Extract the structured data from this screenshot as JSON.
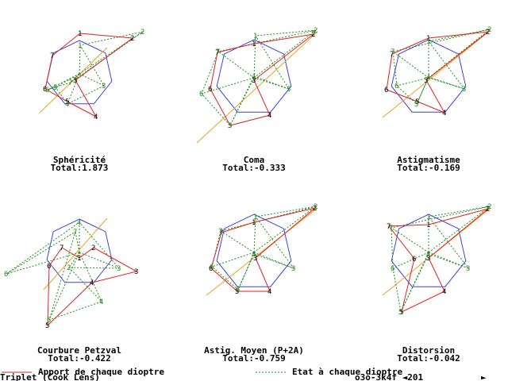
{
  "colors": {
    "contribution": "#e02020",
    "state": "#209020",
    "heptagon": "#4040dd",
    "axis": "#f0a020",
    "text": "#000000"
  },
  "panels": [
    {
      "title": "Sphéricité",
      "total": "Total:1.873",
      "center": [
        100,
        93
      ],
      "radius": 42,
      "rot": -90,
      "axis": [
        [
          50,
          142
        ],
        [
          135,
          60
        ]
      ],
      "red": [
        [
          101,
          42
        ],
        [
          167,
          48
        ],
        [
          95,
          101
        ],
        [
          121,
          147
        ],
        [
          85,
          128
        ],
        [
          57,
          112
        ],
        [
          66,
          70
        ]
      ],
      "green": [
        [
          180,
          40
        ],
        [
          101,
          57
        ],
        [
          131,
          108
        ],
        [
          85,
          131
        ],
        [
          70,
          110
        ],
        [
          60,
          113
        ],
        [
          89,
          104
        ]
      ],
      "red_labels": [
        "1",
        "2",
        "3",
        "4",
        "5",
        "6",
        "7"
      ],
      "green_labels": [
        "2",
        "1",
        "3",
        "4",
        "5",
        "6",
        "7"
      ]
    },
    {
      "title": "Coma",
      "total": "Total:-0.333",
      "center": [
        320,
        98
      ],
      "radius": 48,
      "rot": -90,
      "axis": [
        [
          248,
          180
        ],
        [
          400,
          40
        ]
      ],
      "red": [
        [
          320,
          55
        ],
        [
          395,
          43
        ],
        [
          320,
          101
        ],
        [
          340,
          145
        ],
        [
          290,
          158
        ],
        [
          265,
          112
        ],
        [
          274,
          66
        ]
      ],
      "green": [
        [
          398,
          38
        ],
        [
          322,
          45
        ],
        [
          364,
          112
        ],
        [
          320,
          96
        ],
        [
          290,
          158
        ],
        [
          254,
          118
        ],
        [
          275,
          65
        ]
      ],
      "red_labels": [
        "1",
        "2",
        "3",
        "4",
        "5",
        "6",
        "7"
      ],
      "green_labels": [
        "2",
        "1",
        "3",
        "4",
        "5",
        "6",
        "7"
      ]
    },
    {
      "title": "Astigmatisme",
      "total": "Total:-0.169",
      "center": [
        540,
        98
      ],
      "radius": 48,
      "rot": -90,
      "axis": [
        [
          482,
          148
        ],
        [
          618,
          38
        ]
      ],
      "red": [
        [
          540,
          48
        ],
        [
          615,
          40
        ],
        [
          537,
          101
        ],
        [
          560,
          142
        ],
        [
          526,
          128
        ],
        [
          487,
          113
        ],
        [
          494,
          68
        ]
      ],
      "green": [
        [
          617,
          37
        ],
        [
          540,
          52
        ],
        [
          585,
          112
        ],
        [
          540,
          97
        ],
        [
          525,
          131
        ],
        [
          500,
          108
        ],
        [
          495,
          65
        ]
      ],
      "red_labels": [
        "1",
        "2",
        "3",
        "4",
        "5",
        "6",
        "7"
      ],
      "green_labels": [
        "2",
        "1",
        "3",
        "4",
        "5",
        "6",
        "7"
      ]
    },
    {
      "title": "Courbure Petzval",
      "total": "Total:-0.422",
      "center": [
        100,
        318
      ],
      "radius": 42,
      "rot": -90,
      "axis": [
        [
          55,
          365
        ],
        [
          135,
          275
        ]
      ],
      "red": [
        [
          100,
          325
        ],
        [
          118,
          312
        ],
        [
          172,
          342
        ],
        [
          116,
          356
        ],
        [
          60,
          410
        ],
        [
          62,
          335
        ],
        [
          78,
          312
        ]
      ],
      "green": [
        [
          8,
          345
        ],
        [
          100,
          280
        ],
        [
          150,
          338
        ],
        [
          87,
          337
        ],
        [
          128,
          380
        ],
        [
          62,
          403
        ],
        [
          95,
          292
        ]
      ],
      "red_labels": [
        "1",
        "2",
        "3",
        "4",
        "5",
        "6",
        "7"
      ],
      "green_labels": [
        "6",
        "4",
        "3",
        "2",
        "4",
        "5",
        "7"
      ]
    },
    {
      "title": "Astig. Moyen (P+2A)",
      "total": "Total:-0.759",
      "center": [
        320,
        318
      ],
      "radius": 48,
      "rot": -90,
      "axis": [
        [
          260,
          372
        ],
        [
          400,
          262
        ]
      ],
      "red": [
        [
          320,
          280
        ],
        [
          397,
          262
        ],
        [
          322,
          325
        ],
        [
          340,
          367
        ],
        [
          299,
          367
        ],
        [
          266,
          338
        ],
        [
          279,
          293
        ]
      ],
      "green": [
        [
          398,
          260
        ],
        [
          322,
          273
        ],
        [
          370,
          338
        ],
        [
          320,
          320
        ],
        [
          300,
          365
        ],
        [
          267,
          336
        ],
        [
          278,
          291
        ]
      ],
      "red_labels": [
        "1",
        "2",
        "3",
        "4",
        "5",
        "6",
        "7"
      ],
      "green_labels": [
        "2",
        "1",
        "3",
        "4",
        "5",
        "6",
        "7"
      ]
    },
    {
      "title": "Distorsion",
      "total": "Total:-0.042",
      "center": [
        540,
        318
      ],
      "radius": 48,
      "rot": -90,
      "axis": [
        [
          482,
          372
        ],
        [
          618,
          262
        ]
      ],
      "red": [
        [
          540,
          283
        ],
        [
          615,
          263
        ],
        [
          540,
          325
        ],
        [
          560,
          367
        ],
        [
          506,
          393
        ],
        [
          522,
          326
        ],
        [
          490,
          285
        ]
      ],
      "green": [
        [
          617,
          260
        ],
        [
          540,
          273
        ],
        [
          590,
          338
        ],
        [
          540,
          320
        ],
        [
          505,
          393
        ],
        [
          495,
          338
        ],
        [
          493,
          287
        ]
      ],
      "red_labels": [
        "1",
        "2",
        "3",
        "4",
        "5",
        "6",
        "7"
      ],
      "green_labels": [
        "2",
        "1",
        "3",
        "4",
        "5",
        "6",
        "7"
      ]
    }
  ],
  "legend": {
    "contribution": "Apport de chaque dioptre",
    "state": "Etat à chaque dioptre"
  },
  "footer": {
    "name": "Triplet (Cook Lens)",
    "code": "o3o-3k4f ◄201",
    "next": "►"
  }
}
